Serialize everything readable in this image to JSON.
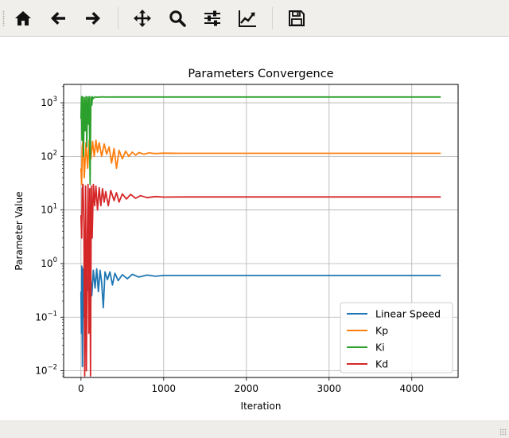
{
  "toolbar": {
    "items": [
      {
        "name": "home-button",
        "icon": "home-icon"
      },
      {
        "name": "back-button",
        "icon": "arrow-left-icon"
      },
      {
        "name": "forward-button",
        "icon": "arrow-right-icon"
      },
      {
        "name": "pan-button",
        "icon": "move-icon"
      },
      {
        "name": "zoom-button",
        "icon": "magnifier-icon"
      },
      {
        "name": "subplots-button",
        "icon": "sliders-icon"
      },
      {
        "name": "edit-axes-button",
        "icon": "line-chart-icon"
      },
      {
        "name": "save-button",
        "icon": "floppy-disk-icon"
      }
    ]
  },
  "status": {
    "message": ""
  },
  "chart_data": {
    "type": "line",
    "title": "Parameters Convergence",
    "xlabel": "Iteration",
    "ylabel": "Parameter Value",
    "xlim": [
      -210,
      4560
    ],
    "ylim": [
      0.0075,
      2200
    ],
    "yscale": "log",
    "grid": true,
    "legend_position": "lower-right",
    "x_ticks": [
      0,
      1000,
      2000,
      3000,
      4000
    ],
    "x_tick_labels": [
      "0",
      "1000",
      "2000",
      "3000",
      "4000"
    ],
    "y_ticks": [
      0.01,
      0.1,
      1,
      10,
      100,
      1000
    ],
    "y_tick_labels": [
      {
        "base": "10",
        "exp": "−2"
      },
      {
        "base": "10",
        "exp": "−1"
      },
      {
        "base": "10",
        "exp": "0"
      },
      {
        "base": "10",
        "exp": "1"
      },
      {
        "base": "10",
        "exp": "2"
      },
      {
        "base": "10",
        "exp": "3"
      }
    ],
    "series": [
      {
        "name": "Linear Speed",
        "color": "#1f77b4",
        "final": 0.6,
        "points": [
          [
            0,
            0.3
          ],
          [
            5,
            0.05
          ],
          [
            10,
            0.9
          ],
          [
            18,
            0.012
          ],
          [
            25,
            0.8
          ],
          [
            35,
            0.1
          ],
          [
            45,
            0.85
          ],
          [
            55,
            0.2
          ],
          [
            70,
            0.7
          ],
          [
            90,
            0.3
          ],
          [
            110,
            0.8
          ],
          [
            130,
            0.25
          ],
          [
            150,
            0.75
          ],
          [
            170,
            0.35
          ],
          [
            190,
            0.8
          ],
          [
            210,
            0.3
          ],
          [
            230,
            0.75
          ],
          [
            250,
            0.45
          ],
          [
            270,
            0.15
          ],
          [
            290,
            0.7
          ],
          [
            320,
            0.5
          ],
          [
            350,
            0.7
          ],
          [
            380,
            0.4
          ],
          [
            410,
            0.66
          ],
          [
            450,
            0.48
          ],
          [
            500,
            0.62
          ],
          [
            560,
            0.52
          ],
          [
            620,
            0.63
          ],
          [
            700,
            0.56
          ],
          [
            800,
            0.61
          ],
          [
            900,
            0.58
          ],
          [
            1000,
            0.6
          ],
          [
            1200,
            0.6
          ],
          [
            4350,
            0.6
          ]
        ]
      },
      {
        "name": "Kp",
        "color": "#ff7f0e",
        "final": 114,
        "points": [
          [
            0,
            60
          ],
          [
            8,
            30
          ],
          [
            15,
            150
          ],
          [
            25,
            200
          ],
          [
            40,
            40
          ],
          [
            60,
            180
          ],
          [
            80,
            60
          ],
          [
            100,
            200
          ],
          [
            120,
            90
          ],
          [
            140,
            190
          ],
          [
            160,
            100
          ],
          [
            180,
            200
          ],
          [
            200,
            120
          ],
          [
            220,
            180
          ],
          [
            250,
            100
          ],
          [
            280,
            170
          ],
          [
            310,
            110
          ],
          [
            340,
            150
          ],
          [
            370,
            75
          ],
          [
            400,
            140
          ],
          [
            430,
            60
          ],
          [
            460,
            130
          ],
          [
            500,
            90
          ],
          [
            540,
            125
          ],
          [
            580,
            100
          ],
          [
            620,
            120
          ],
          [
            660,
            105
          ],
          [
            700,
            118
          ],
          [
            760,
            110
          ],
          [
            820,
            116
          ],
          [
            900,
            113
          ],
          [
            1000,
            115
          ],
          [
            1200,
            114
          ],
          [
            4350,
            114
          ]
        ]
      },
      {
        "name": "Ki",
        "color": "#2ca02c",
        "final": 1280,
        "points": [
          [
            0,
            500
          ],
          [
            5,
            1300
          ],
          [
            12,
            200
          ],
          [
            20,
            1300
          ],
          [
            30,
            100
          ],
          [
            40,
            1250
          ],
          [
            50,
            300
          ],
          [
            60,
            1300
          ],
          [
            70,
            150
          ],
          [
            80,
            1280
          ],
          [
            90,
            400
          ],
          [
            100,
            1300
          ],
          [
            110,
            30
          ],
          [
            120,
            1290
          ],
          [
            130,
            900
          ],
          [
            140,
            1300
          ],
          [
            150,
            1200
          ],
          [
            170,
            1290
          ],
          [
            200,
            1270
          ],
          [
            250,
            1285
          ],
          [
            300,
            1278
          ],
          [
            400,
            1282
          ],
          [
            600,
            1280
          ],
          [
            4350,
            1280
          ]
        ]
      },
      {
        "name": "Kd",
        "color": "#d62728",
        "final": 17.5,
        "points": [
          [
            0,
            8
          ],
          [
            8,
            3
          ],
          [
            15,
            25
          ],
          [
            25,
            30
          ],
          [
            35,
            5
          ],
          [
            45,
            0.008
          ],
          [
            55,
            28
          ],
          [
            65,
            0.01
          ],
          [
            75,
            2
          ],
          [
            85,
            30
          ],
          [
            95,
            0.05
          ],
          [
            105,
            25
          ],
          [
            115,
            0.008
          ],
          [
            125,
            28
          ],
          [
            135,
            3
          ],
          [
            150,
            30
          ],
          [
            165,
            12
          ],
          [
            180,
            28
          ],
          [
            200,
            10
          ],
          [
            220,
            26
          ],
          [
            240,
            12
          ],
          [
            260,
            25
          ],
          [
            280,
            14
          ],
          [
            300,
            22
          ],
          [
            330,
            12
          ],
          [
            360,
            23
          ],
          [
            400,
            15
          ],
          [
            430,
            21
          ],
          [
            460,
            14
          ],
          [
            500,
            20
          ],
          [
            550,
            16
          ],
          [
            600,
            19.5
          ],
          [
            660,
            16.5
          ],
          [
            720,
            18.5
          ],
          [
            800,
            17
          ],
          [
            900,
            17.8
          ],
          [
            1000,
            17.4
          ],
          [
            1200,
            17.5
          ],
          [
            4350,
            17.5
          ]
        ]
      }
    ]
  }
}
